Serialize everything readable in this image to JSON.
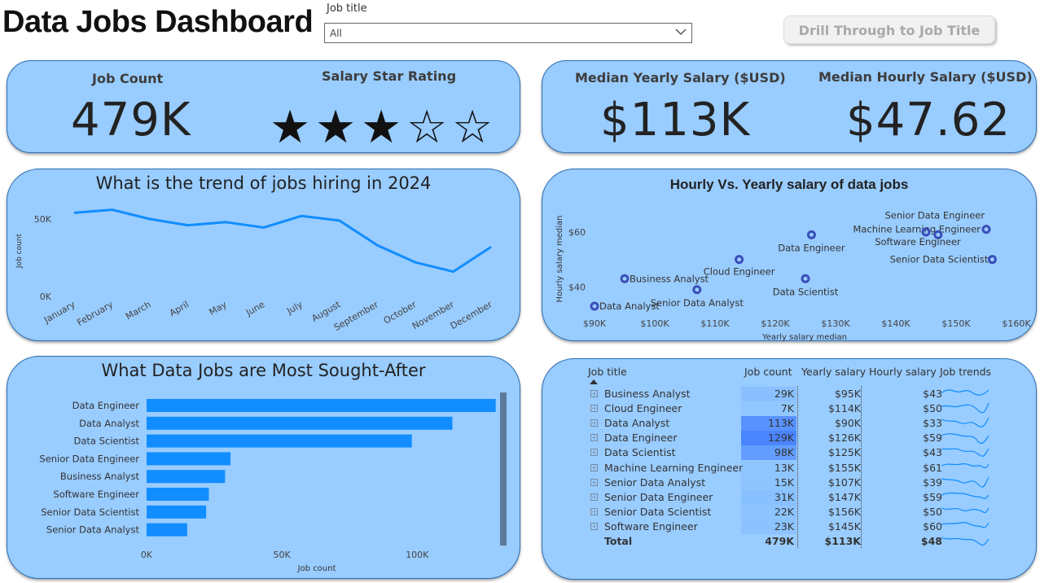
{
  "page": {
    "title": "Data Jobs Dashboard",
    "filter_label": "Job title",
    "filter_value": "All",
    "drill_button": "Drill Through to Job Title"
  },
  "kpi": {
    "job_count_label": "Job Count",
    "job_count_value": "479K",
    "star_label": "Salary Star Rating",
    "star_rating": 3,
    "star_max": 5,
    "yearly_label": "Median Yearly Salary ($USD)",
    "yearly_value": "$113K",
    "hourly_label": "Median Hourly Salary ($USD)",
    "hourly_value": "$47.62"
  },
  "trend": {
    "title": "What is the trend of jobs hiring in 2024"
  },
  "scatter": {
    "title": "Hourly Vs. Yearly salary of data jobs"
  },
  "bars": {
    "title": "What Data Jobs are Most Sought-After"
  },
  "chart_data": [
    {
      "type": "line",
      "title": "What is the trend of jobs hiring in 2024",
      "xlabel": "",
      "ylabel": "Job count",
      "categories": [
        "January",
        "February",
        "March",
        "April",
        "May",
        "June",
        "July",
        "August",
        "September",
        "October",
        "November",
        "December"
      ],
      "values": [
        54000,
        56000,
        50000,
        46000,
        48000,
        44500,
        52000,
        49000,
        33000,
        22000,
        16000,
        32000
      ],
      "yticks": [
        "0K",
        "50K"
      ],
      "ylim": [
        0,
        60000
      ],
      "color": "#118dff"
    },
    {
      "type": "scatter",
      "title": "Hourly Vs. Yearly salary of data jobs",
      "xlabel": "Yearly salary median",
      "ylabel": "Hourly salary median",
      "xticks": [
        "$90K",
        "$100K",
        "$110K",
        "$120K",
        "$130K",
        "$140K",
        "$150K",
        "$160K"
      ],
      "yticks": [
        "$40",
        "$60"
      ],
      "xlim": [
        90000,
        160000
      ],
      "ylim": [
        33,
        68
      ],
      "points": [
        {
          "label": "Data Analyst",
          "x": 90000,
          "y": 33
        },
        {
          "label": "Business Analyst",
          "x": 95000,
          "y": 43
        },
        {
          "label": "Senior Data Analyst",
          "x": 107000,
          "y": 39
        },
        {
          "label": "Cloud Engineer",
          "x": 114000,
          "y": 50
        },
        {
          "label": "Data Scientist",
          "x": 125000,
          "y": 43
        },
        {
          "label": "Data Engineer",
          "x": 126000,
          "y": 59
        },
        {
          "label": "Machine Learning Engineer",
          "x": 155000,
          "y": 61
        },
        {
          "label": "Senior Data Engineer",
          "x": 147000,
          "y": 59
        },
        {
          "label": "Software Engineer",
          "x": 145000,
          "y": 60
        },
        {
          "label": "Senior Data Scientist",
          "x": 156000,
          "y": 50
        }
      ],
      "color": "#3a4eb8"
    },
    {
      "type": "bar",
      "title": "What Data Jobs are Most Sought-After",
      "xlabel": "Job count",
      "ylabel": "",
      "categories": [
        "Data Engineer",
        "Data Analyst",
        "Data Scientist",
        "Senior Data Engineer",
        "Business Analyst",
        "Software Engineer",
        "Senior Data Scientist",
        "Senior Data Analyst"
      ],
      "values": [
        129000,
        113000,
        98000,
        31000,
        29000,
        23000,
        22000,
        15000
      ],
      "xticks": [
        "0K",
        "50K",
        "100K"
      ],
      "xlim": [
        0,
        130000
      ],
      "color": "#118dff"
    },
    {
      "type": "table",
      "columns": [
        "Job title",
        "Job count",
        "Yearly salary",
        "Hourly salary",
        "Job trends"
      ],
      "rows": [
        {
          "title": "Business Analyst",
          "count": "29K",
          "count_num": 29,
          "yearly": "$95K",
          "hourly": "$43"
        },
        {
          "title": "Cloud Engineer",
          "count": "7K",
          "count_num": 7,
          "yearly": "$114K",
          "hourly": "$50"
        },
        {
          "title": "Data Analyst",
          "count": "113K",
          "count_num": 113,
          "yearly": "$90K",
          "hourly": "$33"
        },
        {
          "title": "Data Engineer",
          "count": "129K",
          "count_num": 129,
          "yearly": "$126K",
          "hourly": "$59"
        },
        {
          "title": "Data Scientist",
          "count": "98K",
          "count_num": 98,
          "yearly": "$125K",
          "hourly": "$43"
        },
        {
          "title": "Machine Learning Engineer",
          "count": "13K",
          "count_num": 13,
          "yearly": "$155K",
          "hourly": "$61"
        },
        {
          "title": "Senior Data Analyst",
          "count": "15K",
          "count_num": 15,
          "yearly": "$107K",
          "hourly": "$39"
        },
        {
          "title": "Senior Data Engineer",
          "count": "31K",
          "count_num": 31,
          "yearly": "$147K",
          "hourly": "$59"
        },
        {
          "title": "Senior Data Scientist",
          "count": "22K",
          "count_num": 22,
          "yearly": "$156K",
          "hourly": "$50"
        },
        {
          "title": "Software Engineer",
          "count": "23K",
          "count_num": 23,
          "yearly": "$145K",
          "hourly": "$60"
        }
      ],
      "total": {
        "title": "Total",
        "count": "479K",
        "yearly": "$113K",
        "hourly": "$48"
      }
    }
  ],
  "colors": {
    "card_bg": "#99ccff",
    "card_border": "#2b6fb6",
    "accent": "#118dff",
    "scatter_point": "#3a4eb8",
    "databar": "#5aa9ff"
  }
}
